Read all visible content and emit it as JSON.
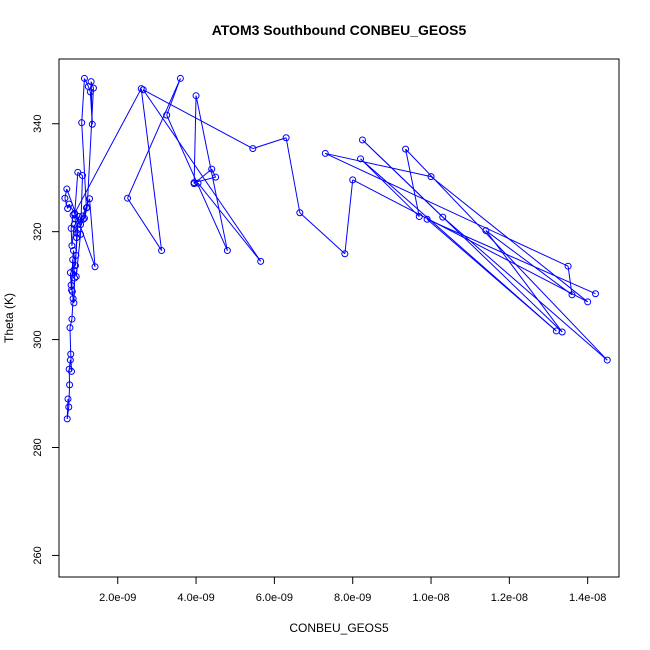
{
  "chart_data": {
    "type": "line",
    "title": "ATOM3 Southbound CONBEU_GEOS5",
    "xlabel": "CONBEU_GEOS5",
    "ylabel": "Theta (K)",
    "xlim": [
      5e-10,
      1.48e-08
    ],
    "ylim": [
      256,
      352
    ],
    "x_ticks": [
      {
        "value": 2e-09,
        "label": "2.0e-09"
      },
      {
        "value": 4e-09,
        "label": "4.0e-09"
      },
      {
        "value": 6e-09,
        "label": "6.0e-09"
      },
      {
        "value": 8e-09,
        "label": "8.0e-09"
      },
      {
        "value": 1e-08,
        "label": "1.0e-08"
      },
      {
        "value": 1.2e-08,
        "label": "1.2e-08"
      },
      {
        "value": 1.4e-08,
        "label": "1.4e-08"
      }
    ],
    "y_ticks": [
      {
        "value": 260,
        "label": "260"
      },
      {
        "value": 280,
        "label": "280"
      },
      {
        "value": 300,
        "label": "300"
      },
      {
        "value": 320,
        "label": "320"
      },
      {
        "value": 340,
        "label": "340"
      }
    ],
    "grid": false,
    "series": [
      {
        "color": "#0000ff",
        "marker": "open-circle",
        "x": [
          7.3e-10,
          7.1e-10,
          7.5e-10,
          7.7e-10,
          7.6e-10,
          7.9e-10,
          8.2e-10,
          8e-10,
          7.8e-10,
          8.3e-10,
          8.6e-10,
          8.1e-10,
          7.9e-10,
          8.4e-10,
          8.8e-10,
          9e-10,
          8.5e-10,
          8.2e-10,
          8.7e-10,
          9.2e-10,
          9.5e-10,
          8.9e-10,
          8.3e-10,
          8.1e-10,
          8.6e-10,
          9.1e-10,
          9.6e-10,
          1e-09,
          9.3e-10,
          8.8e-10,
          9.4e-10,
          1.05e-09,
          1.1e-09,
          9.8e-10,
          9e-10,
          1e-09,
          1.12e-09,
          1.2e-09,
          1.08e-09,
          1.15e-09,
          1.25e-09,
          1.3e-09,
          1.35e-09,
          1.32e-09,
          1.38e-09,
          1.22e-09,
          1.15e-09,
          1.05e-09,
          1.1e-09,
          1.28e-09,
          1.42e-09,
          7e-10,
          6.5e-10,
          7.2e-10,
          7.6e-10,
          9e-10,
          2.6e-09,
          3.12e-09,
          2.25e-09,
          3.6e-09,
          3.25e-09,
          4.8e-09,
          4e-09,
          3.95e-09,
          4.4e-09,
          4.5e-09,
          3.95e-09,
          4.05e-09,
          5.65e-09,
          2.65e-09,
          5.45e-09,
          6.3e-09,
          6.65e-09,
          7.8e-09,
          8e-09,
          1.4e-08,
          1e-08,
          7.3e-09,
          1.35e-08,
          1.36e-08,
          1.14e-08,
          1.335e-08,
          8.25e-09,
          1.03e-08,
          1.45e-08,
          9.35e-09,
          9.7e-09,
          8.2e-09,
          1.32e-08,
          9.9e-09,
          1.42e-08
        ]
      }
    ],
    "y_values": [
      289,
      285.3,
      287.5,
      291.6,
      294.5,
      296.2,
      294.1,
      297.3,
      302.2,
      303.8,
      307.6,
      310.1,
      312.4,
      308.9,
      306.8,
      311.4,
      314.8,
      309.2,
      316.5,
      313.7,
      318.9,
      321.3,
      317.4,
      320.6,
      323.1,
      322.4,
      319.7,
      322.8,
      315.6,
      312.9,
      311.7,
      319.5,
      330.4,
      331.0,
      323.2,
      321.5,
      322.3,
      324.4,
      340.2,
      348.4,
      346.9,
      345.9,
      339.9,
      347.8,
      346.6,
      324.5,
      322.5,
      321.3,
      322.9,
      326.1,
      313.5,
      327.9,
      326.2,
      324.3,
      325.1,
      323.4,
      346.5,
      316.5,
      326.2,
      348.4,
      341.6,
      316.5,
      345.2,
      328.9,
      331.6,
      330.1,
      329.1,
      329.0,
      314.5,
      346.3,
      335.4,
      337.4,
      323.5,
      315.9,
      329.6,
      307.0,
      330.2,
      334.5,
      313.6,
      308.3,
      320.2,
      301.4,
      337.0,
      322.7,
      296.2,
      335.3,
      322.8,
      333.5,
      301.6,
      322.3,
      308.5
    ]
  }
}
